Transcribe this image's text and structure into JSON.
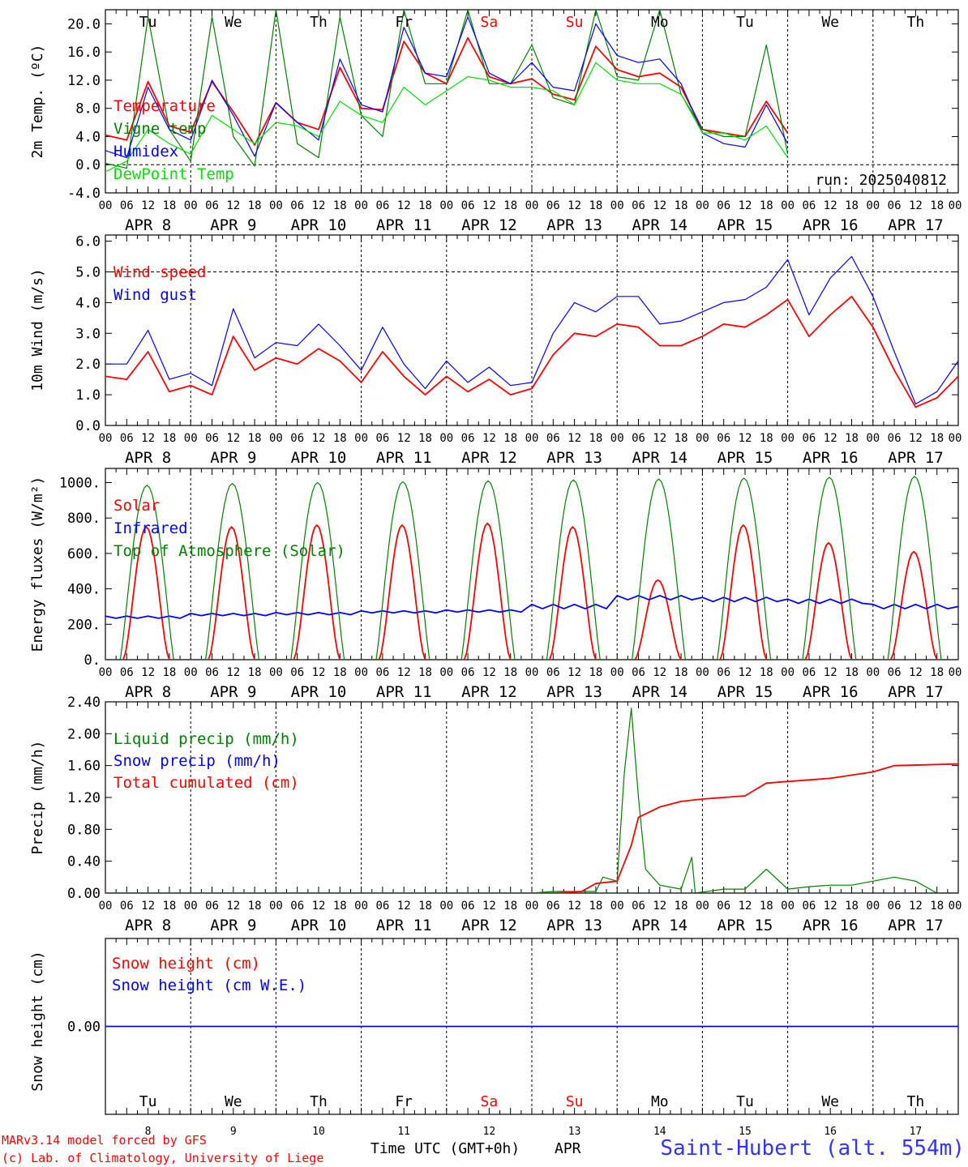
{
  "run_label": "run: 2025040812",
  "station_label": "Saint-Hubert (alt. 554m)",
  "credit_model": "MARv3.14 model forced by GFS",
  "credit_lab": "(c) Lab. of Climatology, University of Liege",
  "time_axis_label": "Time UTC (GMT+0h)",
  "month_label": "APR",
  "hour_ticks": [
    "00",
    "06",
    "12",
    "18"
  ],
  "final_hour_tick": "00",
  "date_labels": [
    "APR  8",
    "APR  9",
    "APR 10",
    "APR 11",
    "APR 12",
    "APR 13",
    "APR 14",
    "APR 15",
    "APR 16",
    "APR 17"
  ],
  "day_numbers": [
    "8",
    "9",
    "10",
    "11",
    "12",
    "13",
    "14",
    "15",
    "16",
    "17"
  ],
  "weekdays": [
    "Tu",
    "We",
    "Th",
    "Fr",
    "Sa",
    "Su",
    "Mo",
    "Tu",
    "We",
    "Th"
  ],
  "weekday_colors": [
    "#000000",
    "#000000",
    "#000000",
    "#000000",
    "#ff0000",
    "#ff0000",
    "#000000",
    "#000000",
    "#000000",
    "#000000"
  ],
  "colors": {
    "red": "#ff0000",
    "green": "#008000",
    "blue": "#0000ff",
    "lightgreen": "#00e000",
    "station": "#3333ff"
  },
  "chart_data": [
    {
      "type": "line",
      "ylabel": "2m Temp. (ºC)",
      "ylim": [
        -4,
        22
      ],
      "yticks": [
        "-4.0",
        "0.0",
        "4.0",
        "8.0",
        "12.0",
        "16.0",
        "20.0"
      ],
      "ytick_values": [
        -4,
        0,
        4,
        8,
        12,
        16,
        20
      ],
      "dashed_ref": 0,
      "x_hours": [
        0,
        6,
        12,
        18,
        24,
        30,
        36,
        42,
        48,
        54,
        60,
        66,
        72,
        78,
        84,
        90,
        96,
        102,
        108,
        114,
        120,
        126,
        132,
        138,
        144,
        150,
        156,
        162,
        168,
        174,
        180,
        186,
        192,
        198,
        204,
        210,
        216,
        222,
        228,
        234,
        240
      ],
      "series": [
        {
          "name": "Temperature",
          "color": "red",
          "values": [
            4.2,
            3.5,
            11.8,
            5.5,
            4.6,
            11.8,
            7.5,
            2.8,
            8.8,
            6.0,
            5.0,
            13.8,
            8.0,
            7.8,
            17.5,
            13.0,
            11.5,
            18.0,
            12.5,
            11.5,
            12.2,
            10.0,
            9.2,
            16.8,
            13.5,
            12.5,
            13.0,
            11.0,
            5.0,
            4.5,
            4.0,
            9.0,
            4.5,
            null,
            null,
            null,
            null,
            null,
            null,
            null,
            null
          ]
        },
        {
          "name": "Vigne temp",
          "color": "green",
          "values": [
            0.2,
            -0.5,
            21.0,
            5.0,
            0.5,
            21.0,
            4.0,
            -0.2,
            22.0,
            3.0,
            1.0,
            21.0,
            7.0,
            4.0,
            22.0,
            11.5,
            11.5,
            22.0,
            11.5,
            11.5,
            17.0,
            9.5,
            8.5,
            22.0,
            12.5,
            12.0,
            22.0,
            10.0,
            5.0,
            4.0,
            4.0,
            17.0,
            1.5,
            null,
            null,
            null,
            null,
            null,
            null,
            null,
            null
          ]
        },
        {
          "name": "Humidex",
          "color": "blue",
          "values": [
            2.0,
            1.0,
            11.0,
            5.0,
            3.5,
            12.0,
            7.0,
            1.2,
            8.8,
            6.0,
            3.5,
            15.0,
            8.5,
            7.5,
            19.5,
            13.0,
            12.5,
            21.0,
            13.0,
            11.5,
            14.5,
            11.0,
            10.5,
            20.0,
            15.5,
            14.5,
            15.0,
            11.5,
            4.5,
            3.0,
            2.5,
            8.5,
            3.0,
            null,
            null,
            null,
            null,
            null,
            null,
            null,
            null
          ]
        },
        {
          "name": "DewPoint Temp",
          "color": "lightgreen",
          "values": [
            -1.0,
            0.5,
            5.0,
            3.0,
            1.5,
            7.0,
            5.0,
            3.0,
            6.0,
            5.5,
            4.0,
            9.0,
            7.0,
            6.0,
            11.0,
            8.5,
            10.5,
            12.5,
            12.0,
            11.0,
            11.0,
            10.5,
            8.5,
            14.5,
            12.0,
            11.5,
            11.5,
            10.0,
            4.5,
            4.5,
            3.5,
            5.5,
            1.0,
            null,
            null,
            null,
            null,
            null,
            null,
            null,
            null
          ]
        }
      ]
    },
    {
      "type": "line",
      "ylabel": "10m Wind (m/s)",
      "ylim": [
        0,
        6.2
      ],
      "yticks": [
        "0.0",
        "1.0",
        "2.0",
        "3.0",
        "4.0",
        "5.0",
        "6.0"
      ],
      "ytick_values": [
        0,
        1,
        2,
        3,
        4,
        5,
        6
      ],
      "dashed_ref": 5,
      "x_hours": [
        0,
        6,
        12,
        18,
        24,
        30,
        36,
        42,
        48,
        54,
        60,
        66,
        72,
        78,
        84,
        90,
        96,
        102,
        108,
        114,
        120,
        126,
        132,
        138,
        144,
        150,
        156,
        162,
        168,
        174,
        180,
        186,
        192,
        198,
        204,
        210,
        216,
        222,
        228,
        234,
        240
      ],
      "series": [
        {
          "name": "Wind speed",
          "color": "red",
          "values": [
            1.6,
            1.5,
            2.4,
            1.1,
            1.3,
            1.0,
            2.9,
            1.8,
            2.2,
            2.0,
            2.5,
            2.1,
            1.4,
            2.4,
            1.6,
            1.0,
            1.6,
            1.1,
            1.5,
            1.0,
            1.2,
            2.3,
            3.0,
            2.9,
            3.3,
            3.2,
            2.6,
            2.6,
            2.9,
            3.3,
            3.2,
            3.6,
            4.1,
            2.9,
            3.6,
            4.2,
            3.2,
            1.8,
            0.6,
            0.9,
            1.6
          ]
        },
        {
          "name": "Wind gust",
          "color": "blue",
          "values": [
            2.0,
            2.0,
            3.1,
            1.5,
            1.7,
            1.3,
            3.8,
            2.2,
            2.7,
            2.6,
            3.3,
            2.6,
            1.8,
            3.2,
            2.0,
            1.2,
            2.1,
            1.4,
            1.9,
            1.3,
            1.4,
            3.0,
            4.0,
            3.7,
            4.2,
            4.2,
            3.3,
            3.4,
            3.7,
            4.0,
            4.1,
            4.5,
            5.4,
            3.6,
            4.8,
            5.5,
            4.2,
            2.4,
            0.7,
            1.1,
            2.1
          ]
        }
      ]
    },
    {
      "type": "line",
      "ylabel": "Energy fluxes (W/m²)",
      "ylim": [
        0,
        1080
      ],
      "yticks": [
        "0.",
        "200.",
        "400.",
        "600.",
        "800.",
        "1000."
      ],
      "ytick_values": [
        0,
        200,
        400,
        600,
        800,
        1000
      ],
      "dashed_ref": null,
      "series": [
        {
          "name": "Solar",
          "color": "red",
          "daily_peaks": [
            750,
            750,
            760,
            760,
            770,
            750,
            450,
            760,
            660,
            610
          ]
        },
        {
          "name": "Infrared",
          "color": "blue",
          "daily_mean": [
            240,
            255,
            260,
            270,
            275,
            300,
            350,
            340,
            330,
            300
          ]
        },
        {
          "name": "Top of Atmosphere (Solar)",
          "color": "green",
          "daily_peaks": [
            985,
            995,
            1000,
            1005,
            1010,
            1015,
            1020,
            1025,
            1030,
            1035
          ]
        }
      ]
    },
    {
      "type": "line",
      "ylabel": "Precip (mm/h)",
      "ylim": [
        0,
        2.4
      ],
      "yticks": [
        "0.00",
        "0.40",
        "0.80",
        "1.20",
        "1.60",
        "2.00",
        "2.40"
      ],
      "ytick_values": [
        0,
        0.4,
        0.8,
        1.2,
        1.6,
        2.0,
        2.4
      ],
      "dashed_ref": null,
      "series": [
        {
          "name": "Liquid precip (mm/h)",
          "color": "green",
          "points": [
            [
              0,
              0
            ],
            [
              120,
              0
            ],
            [
              126,
              0.02
            ],
            [
              138,
              0.02
            ],
            [
              140,
              0.2
            ],
            [
              144,
              0.15
            ],
            [
              146,
              1.5
            ],
            [
              148,
              2.32
            ],
            [
              150,
              1.2
            ],
            [
              152,
              0.3
            ],
            [
              156,
              0.1
            ],
            [
              162,
              0.05
            ],
            [
              165,
              0.45
            ],
            [
              166,
              0.0
            ],
            [
              174,
              0.05
            ],
            [
              180,
              0.05
            ],
            [
              186,
              0.3
            ],
            [
              192,
              0.05
            ],
            [
              198,
              0.08
            ],
            [
              204,
              0.1
            ],
            [
              210,
              0.1
            ],
            [
              216,
              0.15
            ],
            [
              222,
              0.2
            ],
            [
              228,
              0.15
            ],
            [
              234,
              0.0
            ],
            [
              240,
              0.0
            ]
          ]
        },
        {
          "name": "Snow precip (mm/h)",
          "color": "blue",
          "points": [
            [
              0,
              0
            ],
            [
              240,
              0
            ]
          ]
        },
        {
          "name": "Total cumulated (cm)",
          "color": "red",
          "points": [
            [
              0,
              0
            ],
            [
              126,
              0
            ],
            [
              134,
              0.02
            ],
            [
              138,
              0.12
            ],
            [
              144,
              0.15
            ],
            [
              148,
              0.6
            ],
            [
              150,
              0.95
            ],
            [
              156,
              1.08
            ],
            [
              162,
              1.15
            ],
            [
              168,
              1.18
            ],
            [
              174,
              1.2
            ],
            [
              180,
              1.22
            ],
            [
              186,
              1.38
            ],
            [
              192,
              1.4
            ],
            [
              204,
              1.44
            ],
            [
              216,
              1.52
            ],
            [
              222,
              1.6
            ],
            [
              240,
              1.62
            ]
          ]
        }
      ]
    },
    {
      "type": "line",
      "ylabel": "Snow height (cm)",
      "ylim": [
        -1,
        1
      ],
      "yticks": [
        "0.00"
      ],
      "ytick_values": [
        0
      ],
      "dashed_ref": null,
      "series": [
        {
          "name": "Snow height (cm)",
          "color": "red",
          "points": [
            [
              0,
              0
            ],
            [
              240,
              0
            ]
          ]
        },
        {
          "name": "Snow height (cm W.E.)",
          "color": "blue",
          "points": [
            [
              0,
              0
            ],
            [
              240,
              0
            ]
          ]
        }
      ]
    }
  ]
}
